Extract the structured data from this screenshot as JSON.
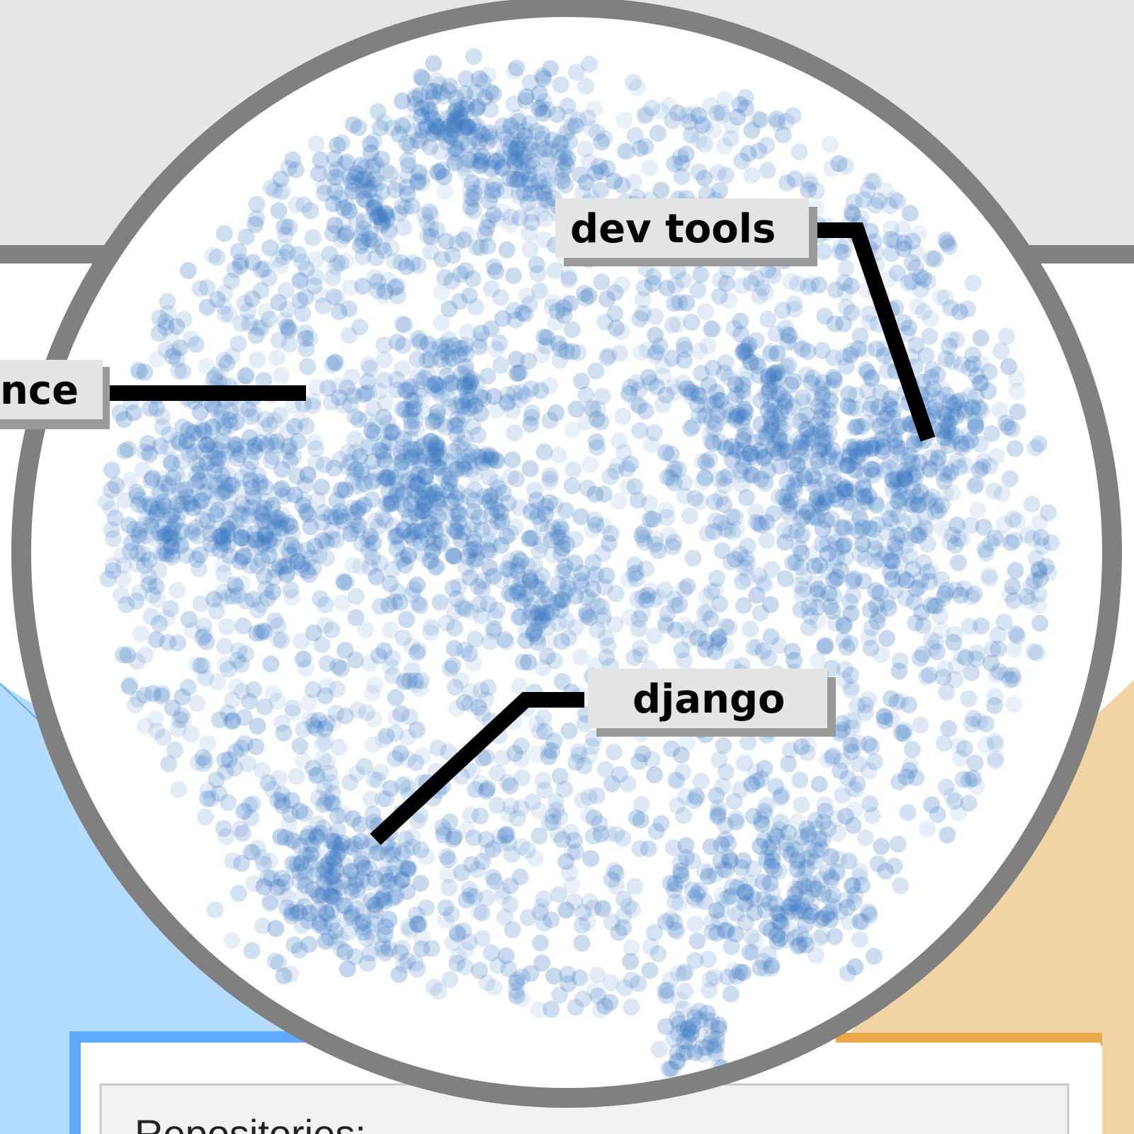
{
  "callouts": {
    "left": "nce",
    "top_right": "dev tools",
    "bottom": "django"
  },
  "panel": {
    "label": "Repositories:"
  },
  "colors": {
    "page_background": "#e6e6e6",
    "frame_gray": "#808080",
    "left_panel_blue": "#b3dcff",
    "left_panel_border": "#5fa8ff",
    "right_panel_orange": "#f2d4a4",
    "right_panel_border": "#eaa94a",
    "dot_blue": "#3a78c2",
    "label_box": "#e4e4e4",
    "label_shadow": "#9a9a9a",
    "leader_line": "#000000"
  }
}
